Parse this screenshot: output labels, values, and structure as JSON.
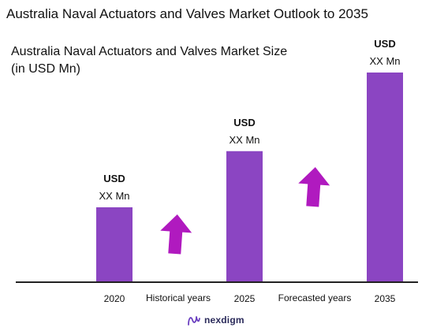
{
  "header": {
    "title": "Australia Naval Actuators and Valves Market Outlook to 2035",
    "subtitle_line1": "Australia Naval Actuators and Valves Market Size",
    "subtitle_line2": "(in USD Mn)"
  },
  "chart_data": {
    "type": "bar",
    "categories": [
      "2020",
      "2025",
      "2035"
    ],
    "values": [
      1.0,
      1.75,
      2.8
    ],
    "value_labels": [
      {
        "currency": "USD",
        "amount": "XX Mn"
      },
      {
        "currency": "USD",
        "amount": "XX Mn"
      },
      {
        "currency": "USD",
        "amount": "XX Mn"
      }
    ],
    "period_labels": [
      "Historical years",
      "Forecasted years"
    ],
    "grid": false,
    "bar_color": "#8B45C2",
    "arrow_color": "#B01ABF",
    "axis_color": "#222222"
  },
  "branding": {
    "logo_text": "nexdigm",
    "logo_icon": "nexdigm-logo-icon"
  }
}
